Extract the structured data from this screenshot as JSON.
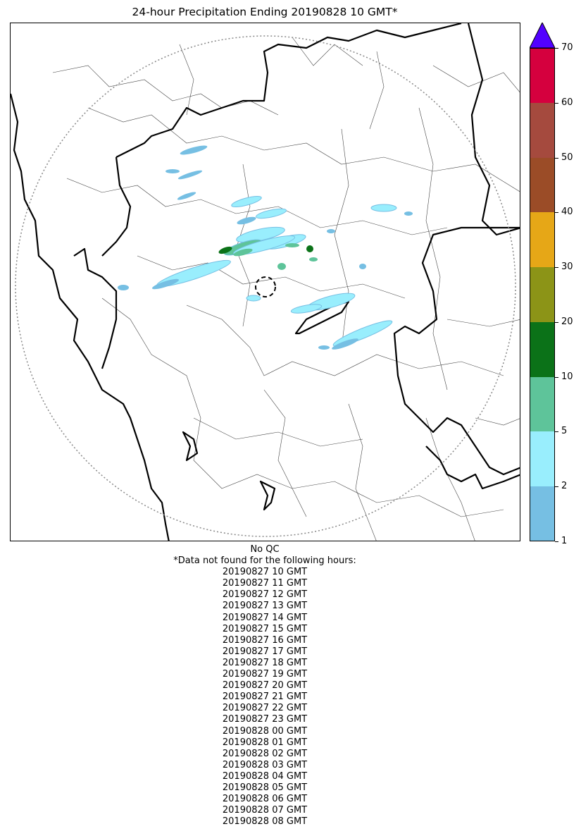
{
  "title": "24-hour Precipitation Ending 20190828 10 GMT*",
  "qc_note": "No QC",
  "missing_header": "*Data not found for the following hours:",
  "missing_hours": [
    "20190827 10 GMT",
    "20190827 11 GMT",
    "20190827 12 GMT",
    "20190827 13 GMT",
    "20190827 14 GMT",
    "20190827 15 GMT",
    "20190827 16 GMT",
    "20190827 17 GMT",
    "20190827 18 GMT",
    "20190827 19 GMT",
    "20190827 20 GMT",
    "20190827 21 GMT",
    "20190827 22 GMT",
    "20190827 23 GMT",
    "20190828 00 GMT",
    "20190828 01 GMT",
    "20190828 02 GMT",
    "20190828 03 GMT",
    "20190828 04 GMT",
    "20190828 05 GMT",
    "20190828 06 GMT",
    "20190828 07 GMT",
    "20190828 08 GMT"
  ],
  "colorbar": {
    "ticks": [
      "1",
      "2",
      "5",
      "10",
      "20",
      "30",
      "40",
      "50",
      "60",
      "70"
    ],
    "colors": [
      "#76bfe3",
      "#99eefd",
      "#5ec49a",
      "#0b7218",
      "#8c9417",
      "#e6a717",
      "#9b4c27",
      "#a54a3e",
      "#d5003e"
    ],
    "extend_color": "#5201ff"
  },
  "map": {
    "radar_range_ring": "dotted",
    "radar_site_marker": "dashed-circle",
    "boundary_color": "#000000",
    "district_color": "#555555"
  }
}
